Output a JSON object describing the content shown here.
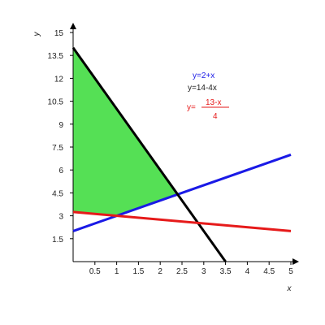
{
  "chart_data": {
    "type": "line",
    "xlabel": "x",
    "ylabel": "y",
    "xlim": [
      0,
      5
    ],
    "ylim": [
      0,
      15
    ],
    "xticks": [
      "0.5",
      "1",
      "1.5",
      "2",
      "2.5",
      "3",
      "3.5",
      "4",
      "4.5",
      "5"
    ],
    "yticks": [
      "1.5",
      "3",
      "4.5",
      "6",
      "7.5",
      "9",
      "10.5",
      "12",
      "13.5",
      "15"
    ],
    "grid": false,
    "series": [
      {
        "name": "y=2+x",
        "x": [
          0,
          5
        ],
        "y": [
          2,
          7
        ],
        "color": "#1a1ae6"
      },
      {
        "name": "y=14-4x",
        "x": [
          0,
          3.5
        ],
        "y": [
          14,
          0
        ],
        "color": "#000000"
      },
      {
        "name": "y=(13-x)/4",
        "x": [
          0,
          5
        ],
        "y": [
          3.25,
          2
        ],
        "color": "#e61a1a"
      }
    ],
    "shaded_region": {
      "color": "#55e055",
      "vertices": [
        [
          0,
          14
        ],
        [
          0,
          3.25
        ],
        [
          1,
          3
        ],
        [
          2.4,
          4.4
        ]
      ]
    },
    "legend": {
      "placement": "top-right",
      "entries": [
        {
          "text": "y=2+x",
          "color": "#1a1ae6"
        },
        {
          "text": "y=14-4x",
          "color": "#222222"
        },
        {
          "prefix": "y=",
          "numerator": "13-x",
          "denominator": "4",
          "color": "#e61a1a"
        }
      ]
    }
  }
}
